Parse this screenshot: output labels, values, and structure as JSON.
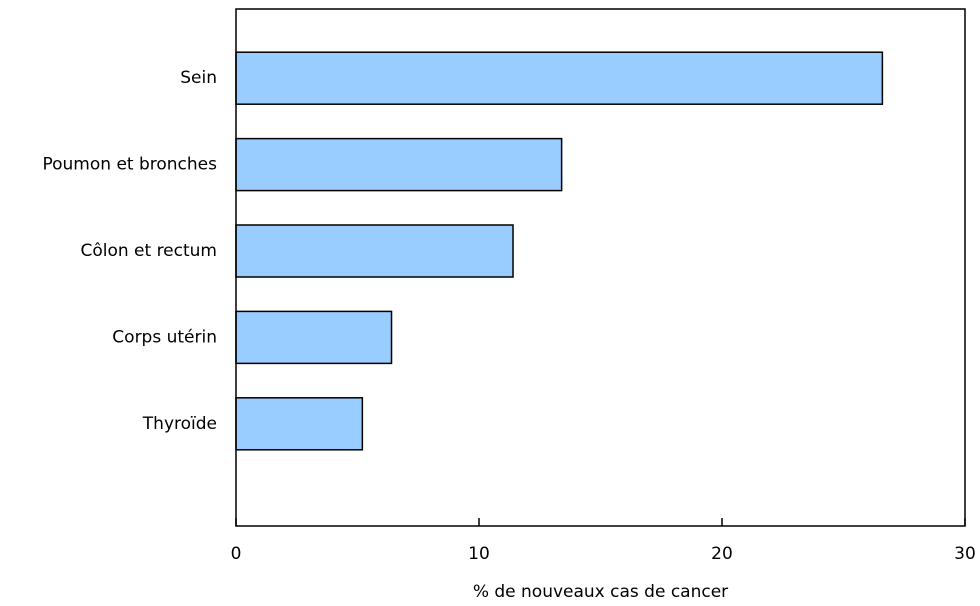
{
  "chart_data": {
    "type": "bar",
    "orientation": "horizontal",
    "title": "",
    "xlabel": "% de nouveaux cas de cancer",
    "ylabel": "",
    "categories": [
      "Sein",
      "Poumon et bronches",
      "Côlon et rectum",
      "Corps utérin",
      "Thyroïde"
    ],
    "values": [
      26.6,
      13.4,
      11.4,
      6.4,
      5.2
    ],
    "xlim": [
      0,
      30
    ],
    "xticks": [
      0,
      10,
      20,
      30
    ],
    "xtick_labels": [
      "0",
      "10",
      "20",
      "30"
    ],
    "grid": false,
    "legend": "none",
    "bar_color": "#99ccff",
    "bar_edge_color": "#000000"
  }
}
